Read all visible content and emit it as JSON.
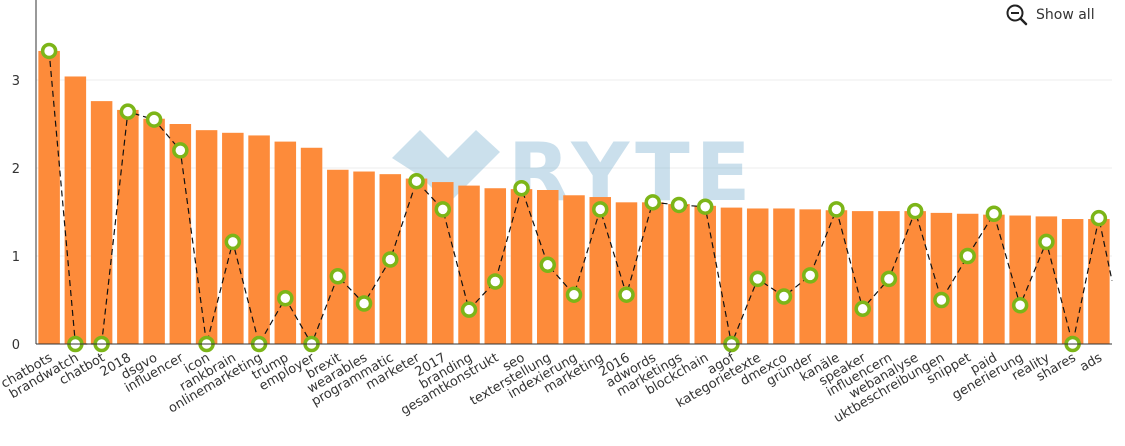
{
  "controls": {
    "show_all_label": "Show all"
  },
  "watermark": {
    "text": "RYTE"
  },
  "colors": {
    "bar": "#fd8b3a",
    "marker": "#7cb518",
    "line": "#111111"
  },
  "chart_data": {
    "type": "bar",
    "categories": [
      "chatbots",
      "brandwatch",
      "chatbot",
      "2018",
      "dsgvo",
      "influencer",
      "icon",
      "rankbrain",
      "onlinemarketing",
      "trump",
      "employer",
      "brexit",
      "wearables",
      "programmatic",
      "marketer",
      "2017",
      "branding",
      "gesamtkonstrukt",
      "seo",
      "texterstellung",
      "indexierung",
      "marketing",
      "2016",
      "adwords",
      "marketings",
      "blockchain",
      "agof",
      "kategorietexte",
      "dmexco",
      "gründer",
      "kanäle",
      "speaker",
      "influencern",
      "webanalyse",
      "uktbeschreibungen",
      "snippet",
      "paid",
      "generierung",
      "reality",
      "shares",
      "ads"
    ],
    "series": [
      {
        "type": "bar",
        "values": [
          3.33,
          3.04,
          2.76,
          2.66,
          2.56,
          2.5,
          2.43,
          2.4,
          2.37,
          2.3,
          2.23,
          1.98,
          1.96,
          1.93,
          1.88,
          1.84,
          1.8,
          1.77,
          1.76,
          1.75,
          1.69,
          1.67,
          1.61,
          1.61,
          1.59,
          1.57,
          1.55,
          1.54,
          1.54,
          1.53,
          1.52,
          1.51,
          1.51,
          1.51,
          1.49,
          1.48,
          1.47,
          1.46,
          1.45,
          1.42,
          1.42
        ]
      },
      {
        "type": "line",
        "values": [
          3.33,
          0,
          0,
          2.64,
          2.55,
          2.2,
          0,
          1.16,
          0,
          0.52,
          0,
          0.77,
          0.46,
          0.96,
          1.85,
          1.53,
          0.39,
          0.71,
          1.77,
          0.9,
          0.56,
          1.53,
          0.56,
          1.61,
          1.58,
          1.56,
          0,
          0.74,
          0.54,
          0.78,
          1.53,
          0.4,
          0.74,
          1.51,
          0.5,
          1.0,
          1.48,
          0.44,
          1.16,
          0,
          1.43
        ]
      }
    ],
    "y_ticks": [
      "0",
      "1",
      "2",
      "3"
    ],
    "ylim": [
      0,
      3.8
    ],
    "grid": true,
    "legend": "none"
  }
}
